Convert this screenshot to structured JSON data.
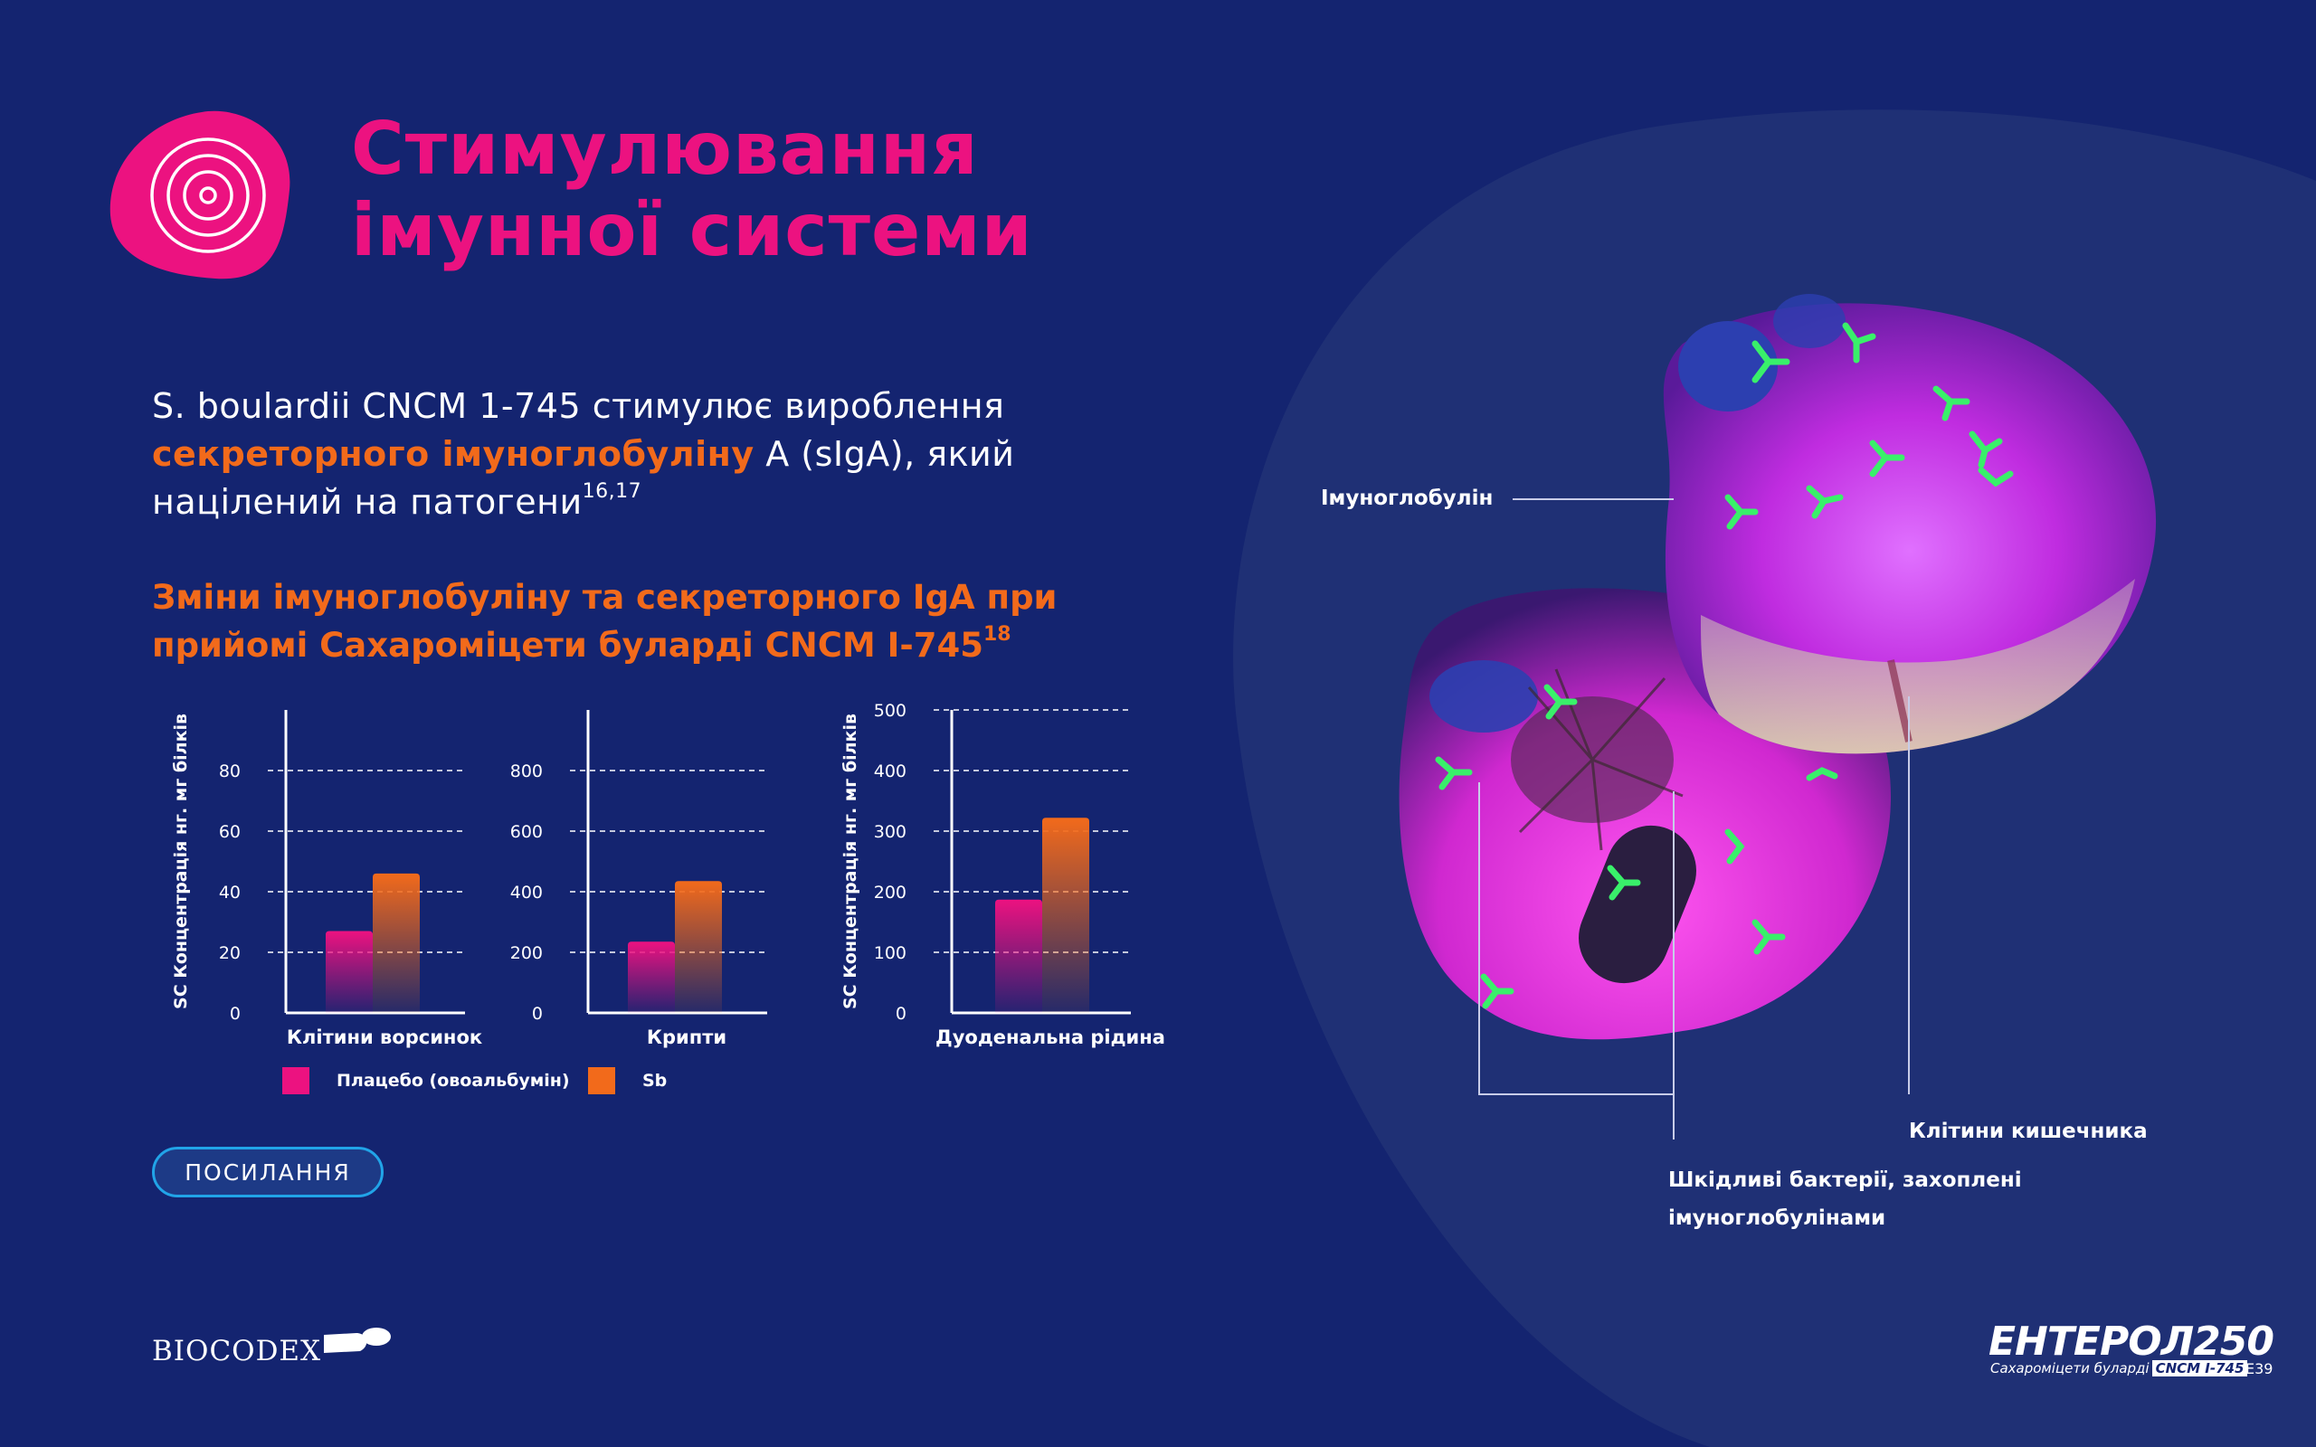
{
  "header": {
    "title_line1": "Стимулювання",
    "title_line2": "імунної системи"
  },
  "intro": {
    "part1": "S. boulardii CNCM 1-745 стимулює вироблення",
    "highlight": "секреторного імуноглобуліну",
    "part2": " A (sIgA), який",
    "part3": "націлений на патогени",
    "sup": "16,17"
  },
  "subtitle": {
    "line1": "Зміни імуноглобуліну та секреторного IgA при",
    "line2": "прийомі Сахароміцети буларді CNCM I-745",
    "sup": "18"
  },
  "colors": {
    "background": "#142470",
    "title_pink": "#ec1280",
    "accent_orange": "#f26a1b",
    "button_border": "#21a4e8"
  },
  "chart_data": [
    {
      "type": "bar",
      "ylabel": "SC Концентрація нг. мг білків",
      "yticks": [
        0,
        20,
        40,
        60,
        80
      ],
      "ylim": [
        0,
        100
      ],
      "grid": true,
      "categories": [
        "Клітини ворсинок"
      ],
      "series": [
        {
          "name": "Плацебо (овоальбумін)",
          "values": [
            27
          ]
        },
        {
          "name": "Sb",
          "values": [
            46
          ]
        }
      ]
    },
    {
      "type": "bar",
      "ylabel": "",
      "yticks": [
        0,
        200,
        400,
        600,
        800
      ],
      "ylim": [
        0,
        1000
      ],
      "grid": true,
      "categories": [
        "Крипти"
      ],
      "series": [
        {
          "name": "Плацебо (овоальбумін)",
          "values": [
            235
          ]
        },
        {
          "name": "Sb",
          "values": [
            435
          ]
        }
      ]
    },
    {
      "type": "bar",
      "ylabel": "SC Концентрація нг. мг білків",
      "yticks": [
        0,
        100,
        200,
        300,
        400,
        500
      ],
      "ylim": [
        0,
        500
      ],
      "grid": true,
      "categories": [
        "Дуоденальна рідина"
      ],
      "series": [
        {
          "name": "Плацебо (овоальбумін)",
          "values": [
            187
          ]
        },
        {
          "name": "Sb",
          "values": [
            322
          ]
        }
      ]
    }
  ],
  "legend": {
    "placebo": "Плацебо (овоальбумін)",
    "sb": "Sb",
    "placebo_color": "#ec1280",
    "sb_color": "#f26a1b"
  },
  "button": {
    "label": "ПОСИЛАННЯ"
  },
  "illustration": {
    "callout_immunoglobulin": "Імуноглобулін",
    "callout_intestinal_cells": "Клітини кишечника",
    "callout_bacteria_line1": "Шкідливі бактерії, захоплені",
    "callout_bacteria_line2": "імуноглобулінами"
  },
  "footer": {
    "company_logo": "BIOCODEX",
    "brand_name": "ЕНТЕРОЛ250",
    "brand_sub": "Сахароміцети буларді",
    "brand_tag": "CNCM I-745",
    "page_code": "E39"
  }
}
